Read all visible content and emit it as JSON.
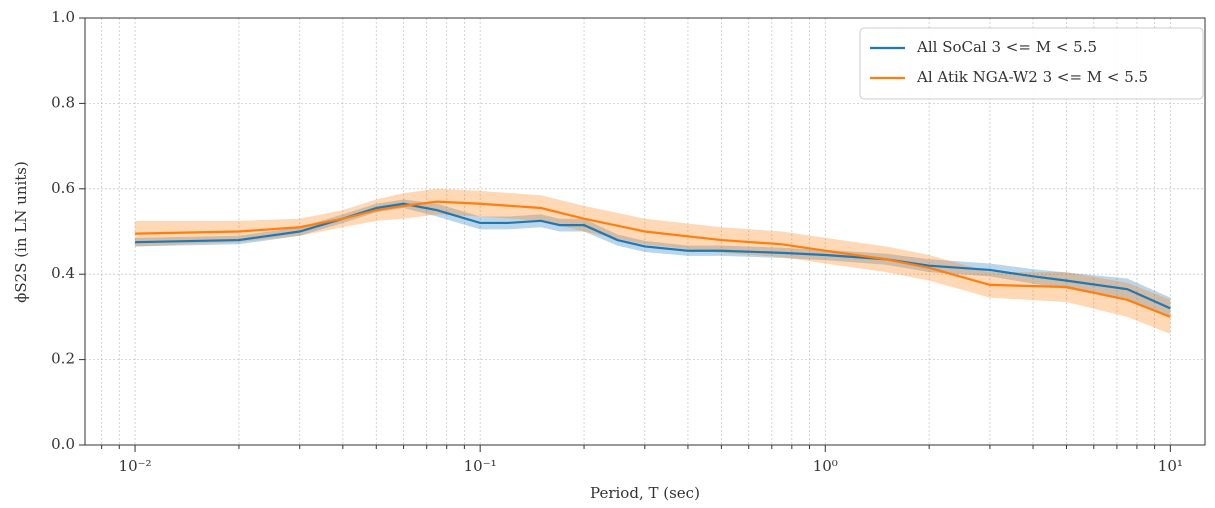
{
  "chart_data": {
    "type": "line",
    "x_label": "Period, T (sec)",
    "y_label": "ϕS2S (in LN units)",
    "xlim": [
      0.00716,
      12.6
    ],
    "ylim": [
      0,
      1
    ],
    "xscale": "log",
    "grid": true,
    "legend": "upper right",
    "xticks": [
      {
        "value": 0.01,
        "label": "10⁻²"
      },
      {
        "value": 0.1,
        "label": "10⁻¹"
      },
      {
        "value": 1,
        "label": "10⁰"
      },
      {
        "value": 10,
        "label": "10¹"
      }
    ],
    "yticks": [
      {
        "value": 0,
        "label": "0.0"
      },
      {
        "value": 0.2,
        "label": "0.2"
      },
      {
        "value": 0.4,
        "label": "0.4"
      },
      {
        "value": 0.6,
        "label": "0.6"
      },
      {
        "value": 0.8,
        "label": "0.8"
      },
      {
        "value": 1,
        "label": "1.0"
      }
    ],
    "series": [
      {
        "name": "All SoCal 3 <= M < 5.5",
        "color": "#1f77b4",
        "x": [
          0.01,
          0.02,
          0.03,
          0.04,
          0.05,
          0.06,
          0.075,
          0.1,
          0.12,
          0.15,
          0.17,
          0.2,
          0.25,
          0.3,
          0.4,
          0.5,
          0.75,
          1,
          1.5,
          2,
          3,
          4,
          5,
          7.5,
          10
        ],
        "values": [
          0.475,
          0.48,
          0.5,
          0.53,
          0.555,
          0.565,
          0.55,
          0.52,
          0.52,
          0.525,
          0.515,
          0.515,
          0.48,
          0.465,
          0.455,
          0.455,
          0.45,
          0.445,
          0.435,
          0.42,
          0.41,
          0.395,
          0.385,
          0.365,
          0.32
        ],
        "lower": [
          0.465,
          0.47,
          0.49,
          0.52,
          0.545,
          0.555,
          0.535,
          0.505,
          0.505,
          0.51,
          0.5,
          0.5,
          0.467,
          0.452,
          0.443,
          0.443,
          0.438,
          0.433,
          0.422,
          0.405,
          0.395,
          0.378,
          0.366,
          0.34,
          0.3
        ],
        "upper": [
          0.485,
          0.49,
          0.51,
          0.54,
          0.565,
          0.575,
          0.565,
          0.535,
          0.535,
          0.54,
          0.53,
          0.53,
          0.493,
          0.478,
          0.467,
          0.467,
          0.462,
          0.457,
          0.448,
          0.435,
          0.425,
          0.412,
          0.404,
          0.39,
          0.345
        ]
      },
      {
        "name": "Al Atik NGA-W2 3 <= M < 5.5",
        "color": "#ff7f0e",
        "x": [
          0.01,
          0.02,
          0.03,
          0.04,
          0.05,
          0.06,
          0.075,
          0.1,
          0.15,
          0.2,
          0.3,
          0.5,
          0.75,
          1,
          1.5,
          2,
          3,
          5,
          7.5,
          10
        ],
        "values": [
          0.495,
          0.5,
          0.51,
          0.53,
          0.55,
          0.56,
          0.57,
          0.565,
          0.555,
          0.53,
          0.5,
          0.48,
          0.47,
          0.455,
          0.435,
          0.415,
          0.375,
          0.37,
          0.34,
          0.3
        ],
        "lower": [
          0.465,
          0.475,
          0.49,
          0.51,
          0.525,
          0.53,
          0.54,
          0.535,
          0.525,
          0.5,
          0.47,
          0.45,
          0.44,
          0.425,
          0.405,
          0.385,
          0.345,
          0.335,
          0.3,
          0.26
        ],
        "upper": [
          0.525,
          0.525,
          0.53,
          0.55,
          0.575,
          0.59,
          0.6,
          0.595,
          0.585,
          0.56,
          0.53,
          0.51,
          0.5,
          0.485,
          0.465,
          0.445,
          0.405,
          0.405,
          0.38,
          0.34
        ]
      }
    ]
  }
}
